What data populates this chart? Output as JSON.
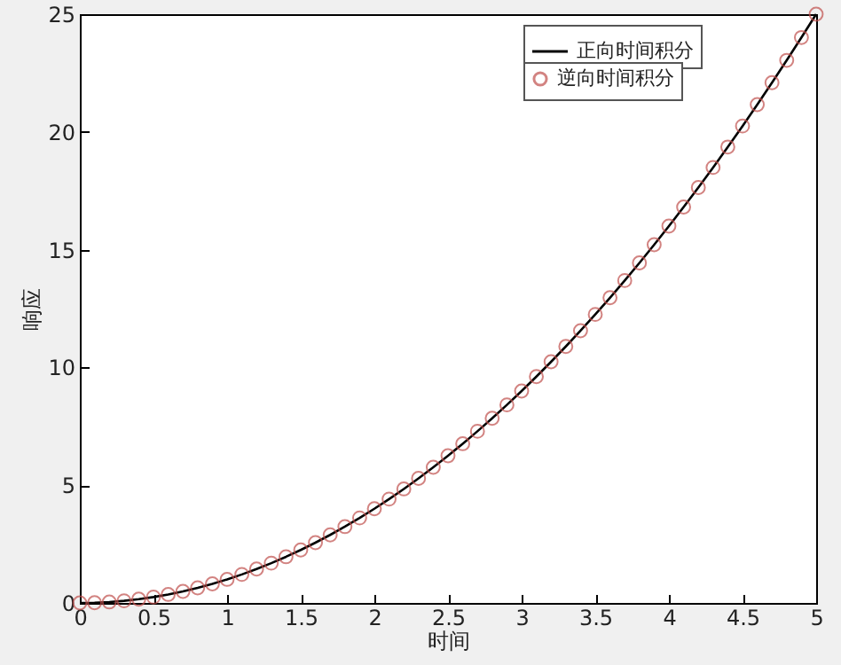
{
  "chart_data": {
    "type": "line",
    "xlabel": "时间",
    "ylabel": "响应",
    "x": [
      0,
      0.1,
      0.2,
      0.3,
      0.4,
      0.5,
      0.6,
      0.7,
      0.8,
      0.9,
      1,
      1.1,
      1.2,
      1.3,
      1.4,
      1.5,
      1.6,
      1.7,
      1.8,
      1.9,
      2,
      2.1,
      2.2,
      2.3,
      2.4,
      2.5,
      2.6,
      2.7,
      2.8,
      2.9,
      3,
      3.1,
      3.2,
      3.3,
      3.4,
      3.5,
      3.6,
      3.7,
      3.8,
      3.9,
      4,
      4.1,
      4.2,
      4.3,
      4.4,
      4.5,
      4.6,
      4.7,
      4.8,
      4.9,
      5
    ],
    "series": [
      {
        "name": "正向时间积分",
        "type": "line",
        "color": "#000000",
        "marker": "none",
        "line_style": "solid",
        "values": [
          0,
          0.01,
          0.04,
          0.09,
          0.16,
          0.25,
          0.36,
          0.49,
          0.64,
          0.81,
          1,
          1.21,
          1.44,
          1.69,
          1.96,
          2.25,
          2.56,
          2.89,
          3.24,
          3.61,
          4,
          4.41,
          4.84,
          5.29,
          5.76,
          6.25,
          6.76,
          7.29,
          7.84,
          8.41,
          9,
          9.61,
          10.24,
          10.89,
          11.56,
          12.25,
          12.96,
          13.69,
          14.44,
          15.21,
          16,
          16.81,
          17.64,
          18.49,
          19.36,
          20.25,
          21.16,
          22.09,
          23.04,
          24.01,
          25
        ]
      },
      {
        "name": "逆向时间积分",
        "type": "scatter",
        "color": "#c0504d",
        "marker": "circle",
        "values": [
          0,
          0.01,
          0.04,
          0.09,
          0.16,
          0.25,
          0.36,
          0.49,
          0.64,
          0.81,
          1,
          1.21,
          1.44,
          1.69,
          1.96,
          2.25,
          2.56,
          2.89,
          3.24,
          3.61,
          4,
          4.41,
          4.84,
          5.29,
          5.76,
          6.25,
          6.76,
          7.29,
          7.84,
          8.41,
          9,
          9.61,
          10.24,
          10.89,
          11.56,
          12.25,
          12.96,
          13.69,
          14.44,
          15.21,
          16,
          16.81,
          17.64,
          18.49,
          19.36,
          20.25,
          21.16,
          22.09,
          23.04,
          24.01,
          25
        ]
      }
    ],
    "xlim": [
      0,
      5
    ],
    "xticks": [
      0,
      0.5,
      1,
      1.5,
      2,
      2.5,
      3,
      3.5,
      4,
      4.5,
      5
    ],
    "ylim": [
      0,
      25
    ],
    "yticks": [
      0,
      5,
      10,
      15,
      20,
      25
    ],
    "grid": false,
    "legend": "top right"
  }
}
